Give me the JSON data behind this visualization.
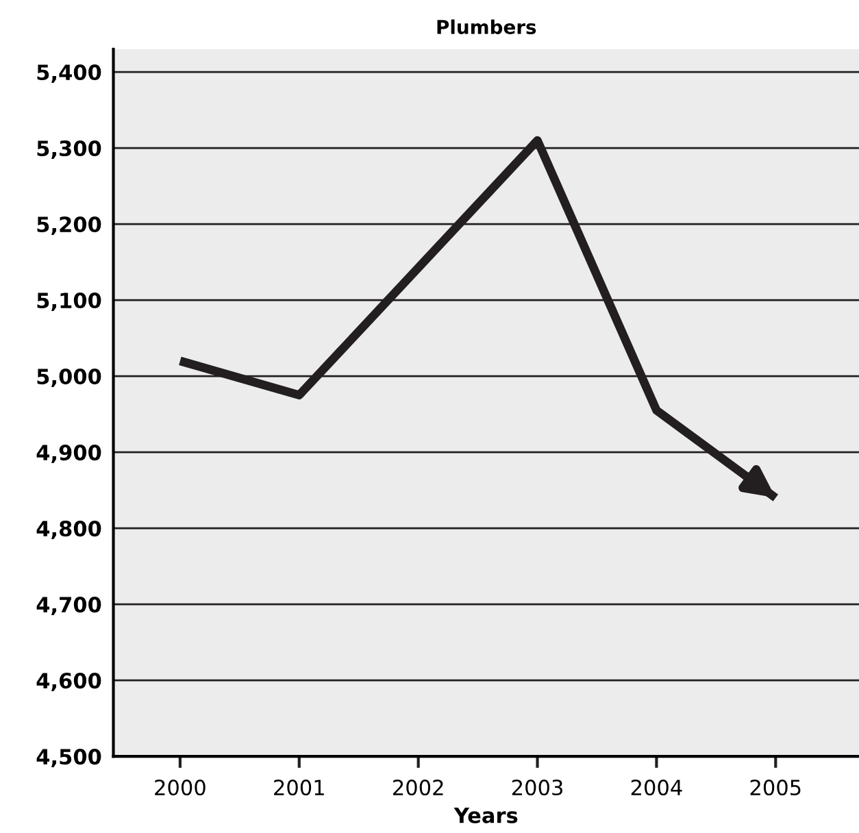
{
  "chart_data": {
    "type": "line",
    "title": "Plumbers",
    "xlabel": "Years",
    "categories": [
      "2000",
      "2001",
      "2002",
      "2003",
      "2004",
      "2005"
    ],
    "series": [
      {
        "color": "#231f20",
        "values": [
          5020,
          4975,
          null,
          5310,
          4955,
          4840
        ]
      }
    ],
    "ylim": [
      4500,
      5430
    ],
    "yticks": [
      {
        "value": 4500,
        "label": "4,500"
      },
      {
        "value": 4600,
        "label": "4,600"
      },
      {
        "value": 4700,
        "label": "4,700"
      },
      {
        "value": 4800,
        "label": "4,800"
      },
      {
        "value": 4900,
        "label": "4,900"
      },
      {
        "value": 5000,
        "label": "5,000"
      },
      {
        "value": 5100,
        "label": "5,100"
      },
      {
        "value": 5200,
        "label": "5,200"
      },
      {
        "value": 5300,
        "label": "5,300"
      },
      {
        "value": 5400,
        "label": "5,400"
      }
    ],
    "grid": "y",
    "marker": "none",
    "line_style": "solid"
  }
}
